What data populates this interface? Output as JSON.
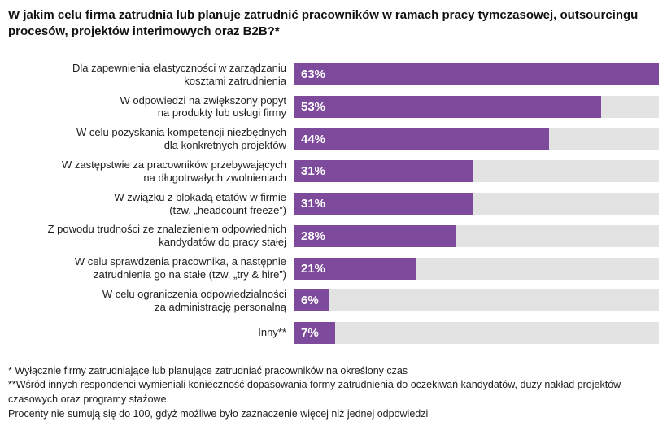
{
  "title": "W jakim celu firma zatrudnia lub planuje zatrudnić pracowników w ramach pracy tymczasowej, outsourcingu procesów, projektów interimowych oraz B2B?*",
  "chart_data": {
    "type": "bar",
    "orientation": "horizontal",
    "title": "W jakim celu firma zatrudnia lub planuje zatrudnić pracowników w ramach pracy tymczasowej, outsourcingu procesów, projektów interimowych oraz B2B?*",
    "categories": [
      "Dla zapewnienia elastyczności w zarządzaniu\nkosztami zatrudnienia",
      "W odpowiedzi na zwiększony popyt\nna produkty lub usługi firmy",
      "W celu pozyskania kompetencji niezbędnych\ndla konkretnych projektów",
      "W zastępstwie za pracowników przebywających\nna długotrwałych zwolnieniach",
      "W związku z blokadą etatów w firmie\n(tzw. „headcount freeze”)",
      "Z powodu trudności ze znalezieniem odpowiednich\nkandydatów do pracy stałej",
      "W celu sprawdzenia pracownika, a następnie\nzatrudnienia go na stałe (tzw. „try & hire”)",
      "W celu ograniczenia odpowiedzialności\nza administrację personalną",
      "Inny**"
    ],
    "values": [
      63,
      53,
      44,
      31,
      31,
      28,
      21,
      6,
      7
    ],
    "value_suffix": "%",
    "scale_max": 63,
    "xlim": [
      0,
      63
    ],
    "grid": false,
    "legend": false,
    "bar_color": "#7d4a9c",
    "track_color": "#e3e3e3",
    "value_label_color": "#ffffff"
  },
  "footnotes": [
    "* Wyłącznie firmy zatrudniające lub planujące zatrudniać pracowników na określony czas",
    "**Wśród innych respondenci wymieniali konieczność dopasowania formy zatrudnienia do oczekiwań kandydatów, duży nakład projektów czasowych oraz programy stażowe",
    "Procenty nie sumują się do 100, gdyż możliwe było zaznaczenie więcej niż jednej odpowiedzi"
  ]
}
